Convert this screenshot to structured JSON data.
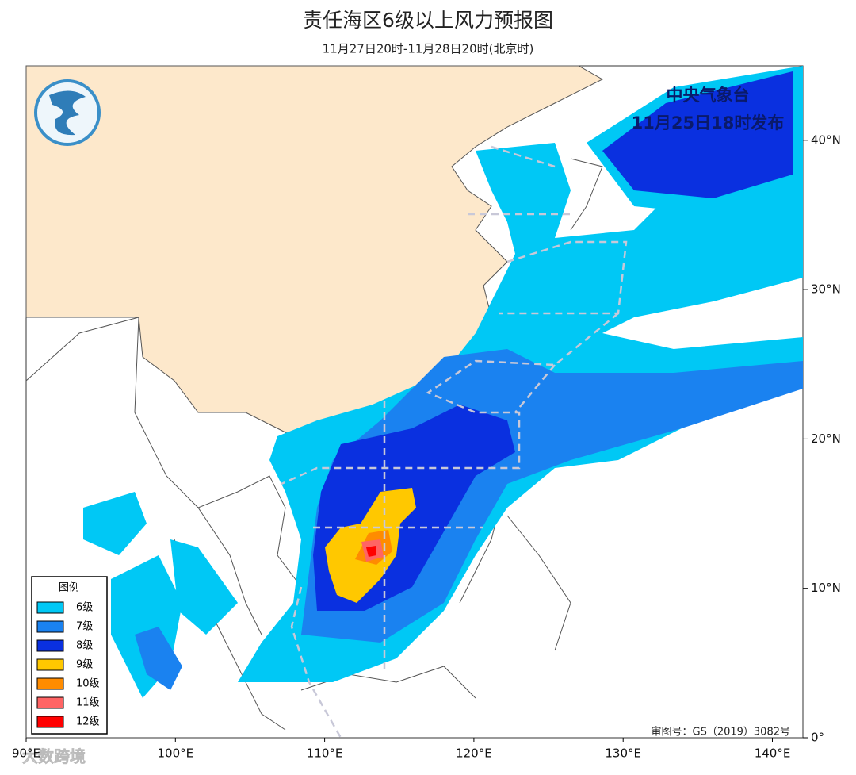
{
  "header": {
    "title": "责任海区6级以上风力预报图",
    "subtitle": "11月27日20时-11月28日20时(北京时)"
  },
  "issuer": {
    "name": "中央气象台",
    "time": "11月25日18时发布"
  },
  "legend": {
    "title": "图例",
    "items": [
      {
        "label": "6级",
        "color": "#00c8f5"
      },
      {
        "label": "7级",
        "color": "#1a82f0"
      },
      {
        "label": "8级",
        "color": "#0a30e0"
      },
      {
        "label": "9级",
        "color": "#ffc800"
      },
      {
        "label": "10级",
        "color": "#ff8c00"
      },
      {
        "label": "11级",
        "color": "#ff6464"
      },
      {
        "label": "12级",
        "color": "#ff0000"
      }
    ]
  },
  "lon_ticks": [
    {
      "value": 90,
      "label": "90°E"
    },
    {
      "value": 100,
      "label": "100°E"
    },
    {
      "value": 110,
      "label": "110°E"
    },
    {
      "value": 120,
      "label": "120°E"
    },
    {
      "value": 130,
      "label": "130°E"
    },
    {
      "value": 140,
      "label": "140°E"
    }
  ],
  "lat_ticks": [
    {
      "value": 0,
      "label": "0°"
    },
    {
      "value": 10,
      "label": "10°N"
    },
    {
      "value": 20,
      "label": "20°N"
    },
    {
      "value": 30,
      "label": "30°N"
    },
    {
      "value": 40,
      "label": "40°N"
    }
  ],
  "approval": "审图号：GS（2019）3082号",
  "watermark": "大数跨境"
}
